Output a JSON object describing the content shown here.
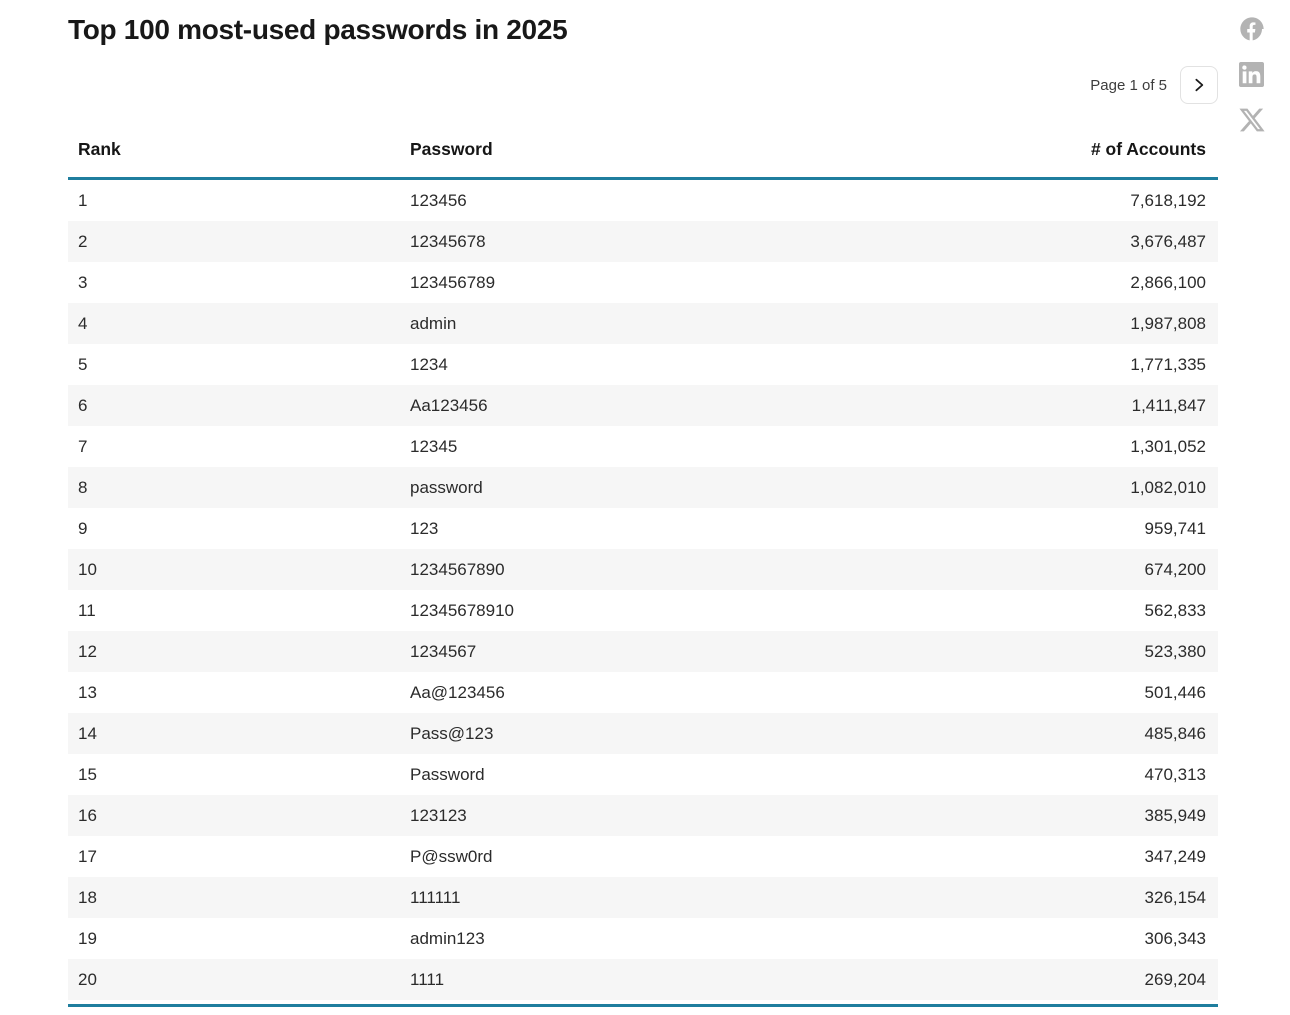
{
  "title": "Top 100 most-used passwords in 2025",
  "pagination": {
    "label": "Page 1 of 5",
    "next_icon": "chevron-right"
  },
  "share": {
    "icons": [
      "facebook-icon",
      "linkedin-icon",
      "x-icon"
    ]
  },
  "table": {
    "columns": [
      "Rank",
      "Password",
      "# of Accounts"
    ],
    "rows": [
      {
        "rank": "1",
        "password": "123456",
        "accounts": "7,618,192"
      },
      {
        "rank": "2",
        "password": "12345678",
        "accounts": "3,676,487"
      },
      {
        "rank": "3",
        "password": "123456789",
        "accounts": "2,866,100"
      },
      {
        "rank": "4",
        "password": "admin",
        "accounts": "1,987,808"
      },
      {
        "rank": "5",
        "password": "1234",
        "accounts": "1,771,335"
      },
      {
        "rank": "6",
        "password": "Aa123456",
        "accounts": "1,411,847"
      },
      {
        "rank": "7",
        "password": "12345",
        "accounts": "1,301,052"
      },
      {
        "rank": "8",
        "password": "password",
        "accounts": "1,082,010"
      },
      {
        "rank": "9",
        "password": "123",
        "accounts": "959,741"
      },
      {
        "rank": "10",
        "password": "1234567890",
        "accounts": "674,200"
      },
      {
        "rank": "11",
        "password": "12345678910",
        "accounts": "562,833"
      },
      {
        "rank": "12",
        "password": "1234567",
        "accounts": "523,380"
      },
      {
        "rank": "13",
        "password": "Aa@123456",
        "accounts": "501,446"
      },
      {
        "rank": "14",
        "password": "Pass@123",
        "accounts": "485,846"
      },
      {
        "rank": "15",
        "password": "Password",
        "accounts": "470,313"
      },
      {
        "rank": "16",
        "password": "123123",
        "accounts": "385,949"
      },
      {
        "rank": "17",
        "password": "P@ssw0rd",
        "accounts": "347,249"
      },
      {
        "rank": "18",
        "password": "111111",
        "accounts": "326,154"
      },
      {
        "rank": "19",
        "password": "admin123",
        "accounts": "306,343"
      },
      {
        "rank": "20",
        "password": "1111",
        "accounts": "269,204"
      }
    ]
  },
  "colors": {
    "accent_rule": "#1f7e9e",
    "row_alt": "#f6f6f6",
    "icon_gray": "#b3b3b3",
    "title_text": "#181818",
    "cell_text": "#2b2b2b"
  }
}
